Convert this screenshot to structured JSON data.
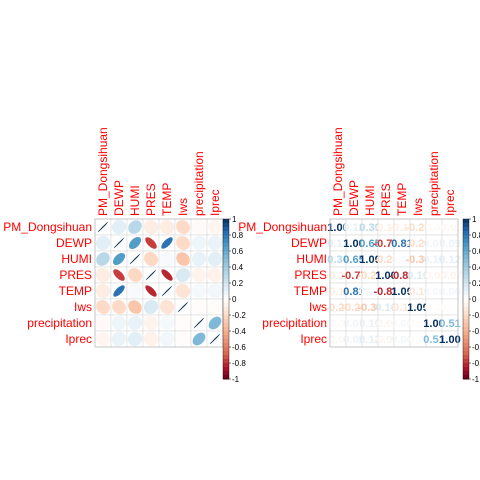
{
  "chart_data": [
    {
      "type": "heatmap",
      "method": "ellipse",
      "variables": [
        "PM_Dongsihuan",
        "DEWP",
        "HUMI",
        "PRES",
        "TEMP",
        "Iws",
        "precipitation",
        "Iprec"
      ],
      "matrix": [
        [
          1.0,
          0.12,
          0.3,
          -0.1,
          -0.1,
          -0.2,
          -0.03,
          -0.05
        ],
        [
          0.12,
          1.0,
          0.65,
          -0.77,
          0.81,
          -0.2,
          0.07,
          0.09
        ],
        [
          0.3,
          0.65,
          1.0,
          -0.21,
          0.04,
          -0.3,
          0.1,
          0.12
        ],
        [
          -0.1,
          -0.77,
          -0.21,
          1.0,
          -0.82,
          0.16,
          -0.06,
          -0.07
        ],
        [
          -0.1,
          0.81,
          0.04,
          -0.82,
          1.0,
          -0.15,
          0.05,
          0.06
        ],
        [
          -0.2,
          -0.2,
          -0.3,
          0.16,
          -0.15,
          1.0,
          -0.02,
          -0.02
        ],
        [
          -0.03,
          0.07,
          0.1,
          -0.06,
          0.05,
          -0.02,
          1.0,
          0.51
        ],
        [
          -0.05,
          0.09,
          0.12,
          -0.07,
          0.06,
          -0.02,
          0.51,
          1.0
        ]
      ],
      "color_scale": {
        "low": "#67001f",
        "mid": "#ffffff",
        "high": "#053061",
        "range": [
          -1,
          1
        ]
      },
      "legend_ticks": [
        "1",
        "0.8",
        "0.6",
        "0.4",
        "0.2",
        "0",
        "-0.2",
        "-0.4",
        "-0.6",
        "-0.8",
        "-1"
      ],
      "label_color": "#ff0000"
    },
    {
      "type": "heatmap",
      "method": "number",
      "variables": [
        "PM_Dongsihuan",
        "DEWP",
        "HUMI",
        "PRES",
        "TEMP",
        "Iws",
        "precipitation",
        "Iprec"
      ],
      "matrix": [
        [
          1.0,
          0.12,
          0.3,
          -0.1,
          -0.1,
          -0.2,
          -0.03,
          -0.05
        ],
        [
          0.12,
          1.0,
          0.65,
          -0.77,
          0.81,
          -0.2,
          0.07,
          0.09
        ],
        [
          0.3,
          0.65,
          1.0,
          -0.21,
          0.04,
          -0.3,
          0.1,
          0.12
        ],
        [
          -0.1,
          -0.77,
          -0.21,
          1.0,
          -0.82,
          0.16,
          -0.06,
          -0.07
        ],
        [
          -0.1,
          0.81,
          0.04,
          -0.82,
          1.0,
          -0.15,
          0.05,
          0.06
        ],
        [
          -0.2,
          -0.2,
          -0.3,
          0.16,
          -0.15,
          1.0,
          -0.02,
          -0.02
        ],
        [
          -0.03,
          0.07,
          0.1,
          -0.06,
          0.05,
          -0.02,
          1.0,
          0.51
        ],
        [
          -0.05,
          0.09,
          0.12,
          -0.07,
          0.06,
          -0.02,
          0.51,
          1.0
        ]
      ],
      "color_scale": {
        "low": "#67001f",
        "mid": "#ffffff",
        "high": "#053061",
        "range": [
          -1,
          1
        ]
      },
      "legend_ticks": [
        "1",
        "0.8",
        "0.6",
        "0.4",
        "0.2",
        "0",
        "-0.2",
        "-0.4",
        "-0.6",
        "-0.8",
        "-1"
      ],
      "label_color": "#ff0000"
    }
  ]
}
